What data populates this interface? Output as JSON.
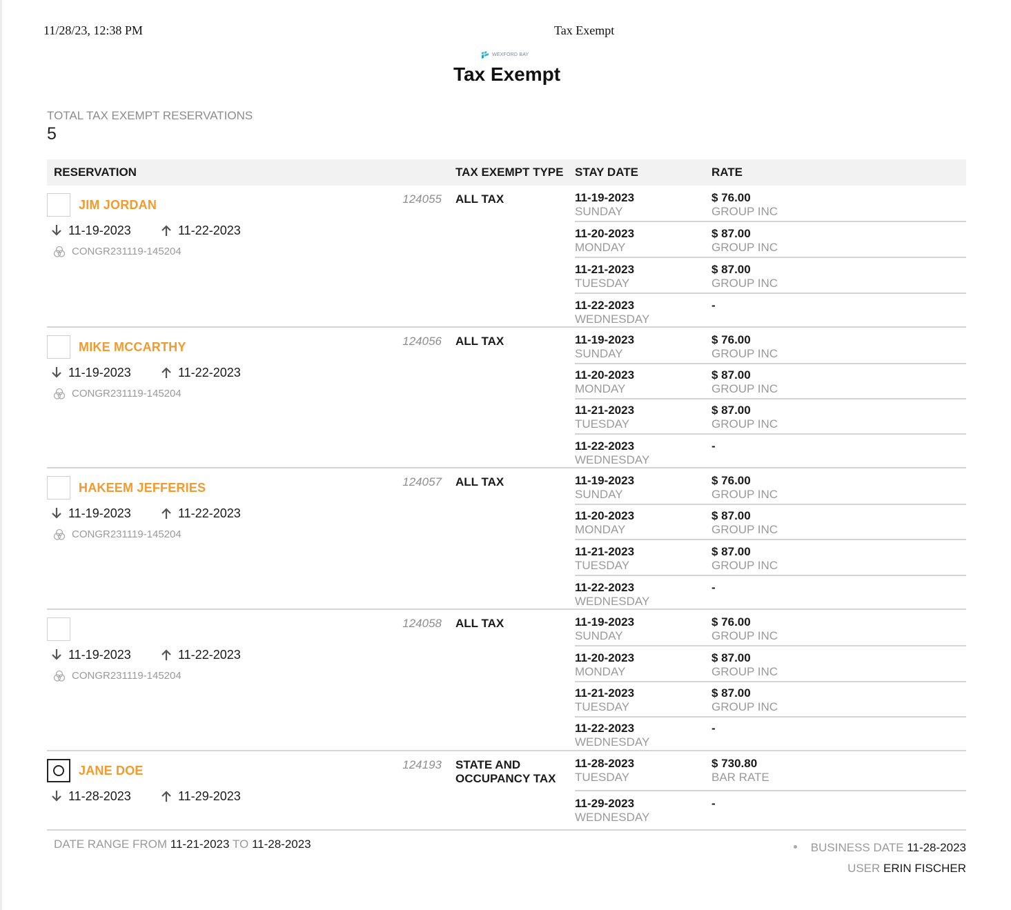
{
  "print_header": {
    "datetime": "11/28/23, 12:38 PM",
    "title": "Tax Exempt"
  },
  "logo": {
    "text": "WEXFORD BAY",
    "color": "#3fb7d8"
  },
  "report": {
    "title": "Tax Exempt"
  },
  "summary": {
    "label": "TOTAL TAX EXEMPT RESERVATIONS",
    "value": "5"
  },
  "table": {
    "headers": {
      "reservation": "RESERVATION",
      "tax_exempt_type": "TAX EXEMPT TYPE",
      "stay_date": "STAY DATE",
      "rate": "RATE"
    }
  },
  "reservations": [
    {
      "guest_name": "JIM JORDAN",
      "number": "124055",
      "tax_type": "ALL TAX",
      "arrival": "11-19-2023",
      "departure": "11-22-2023",
      "group_code": "CONGR231119-145204",
      "selected": false,
      "nights": [
        {
          "date": "11-19-2023",
          "day": "SUNDAY",
          "rate": "$ 76.00",
          "plan": "GROUP INC"
        },
        {
          "date": "11-20-2023",
          "day": "MONDAY",
          "rate": "$ 87.00",
          "plan": "GROUP INC"
        },
        {
          "date": "11-21-2023",
          "day": "TUESDAY",
          "rate": "$ 87.00",
          "plan": "GROUP INC"
        },
        {
          "date": "11-22-2023",
          "day": "WEDNESDAY",
          "rate": "-",
          "plan": ""
        }
      ]
    },
    {
      "guest_name": "MIKE MCCARTHY",
      "number": "124056",
      "tax_type": "ALL TAX",
      "arrival": "11-19-2023",
      "departure": "11-22-2023",
      "group_code": "CONGR231119-145204",
      "selected": false,
      "nights": [
        {
          "date": "11-19-2023",
          "day": "SUNDAY",
          "rate": "$ 76.00",
          "plan": "GROUP INC"
        },
        {
          "date": "11-20-2023",
          "day": "MONDAY",
          "rate": "$ 87.00",
          "plan": "GROUP INC"
        },
        {
          "date": "11-21-2023",
          "day": "TUESDAY",
          "rate": "$ 87.00",
          "plan": "GROUP INC"
        },
        {
          "date": "11-22-2023",
          "day": "WEDNESDAY",
          "rate": "-",
          "plan": ""
        }
      ]
    },
    {
      "guest_name": "HAKEEM JEFFERIES",
      "number": "124057",
      "tax_type": "ALL TAX",
      "arrival": "11-19-2023",
      "departure": "11-22-2023",
      "group_code": "CONGR231119-145204",
      "selected": false,
      "nights": [
        {
          "date": "11-19-2023",
          "day": "SUNDAY",
          "rate": "$ 76.00",
          "plan": "GROUP INC"
        },
        {
          "date": "11-20-2023",
          "day": "MONDAY",
          "rate": "$ 87.00",
          "plan": "GROUP INC"
        },
        {
          "date": "11-21-2023",
          "day": "TUESDAY",
          "rate": "$ 87.00",
          "plan": "GROUP INC"
        },
        {
          "date": "11-22-2023",
          "day": "WEDNESDAY",
          "rate": "-",
          "plan": ""
        }
      ]
    },
    {
      "guest_name": "",
      "number": "124058",
      "tax_type": "ALL TAX",
      "arrival": "11-19-2023",
      "departure": "11-22-2023",
      "group_code": "CONGR231119-145204",
      "selected": false,
      "nights": [
        {
          "date": "11-19-2023",
          "day": "SUNDAY",
          "rate": "$ 76.00",
          "plan": "GROUP INC"
        },
        {
          "date": "11-20-2023",
          "day": "MONDAY",
          "rate": "$ 87.00",
          "plan": "GROUP INC"
        },
        {
          "date": "11-21-2023",
          "day": "TUESDAY",
          "rate": "$ 87.00",
          "plan": "GROUP INC"
        },
        {
          "date": "11-22-2023",
          "day": "WEDNESDAY",
          "rate": "-",
          "plan": ""
        }
      ]
    },
    {
      "guest_name": "JANE DOE",
      "number": "124193",
      "tax_type": "STATE AND OCCUPANCY TAX",
      "arrival": "11-28-2023",
      "departure": "11-29-2023",
      "group_code": "",
      "selected": true,
      "nights": [
        {
          "date": "11-28-2023",
          "day": "TUESDAY",
          "rate": "$ 730.80",
          "plan": "BAR RATE"
        },
        {
          "date": "11-29-2023",
          "day": "WEDNESDAY",
          "rate": "-",
          "plan": ""
        }
      ]
    }
  ],
  "footer": {
    "date_range_from_label": "DATE RANGE FROM",
    "date_range_from": "11-21-2023",
    "date_range_to_label": "TO",
    "date_range_to": "11-28-2023",
    "business_date_label": "BUSINESS DATE",
    "business_date": "11-28-2023",
    "user_label": "USER",
    "user": "ERIN FISCHER"
  },
  "colors": {
    "accent": "#f29a2e",
    "muted": "#9a9a9a",
    "header_bg": "#f2f2f2"
  }
}
